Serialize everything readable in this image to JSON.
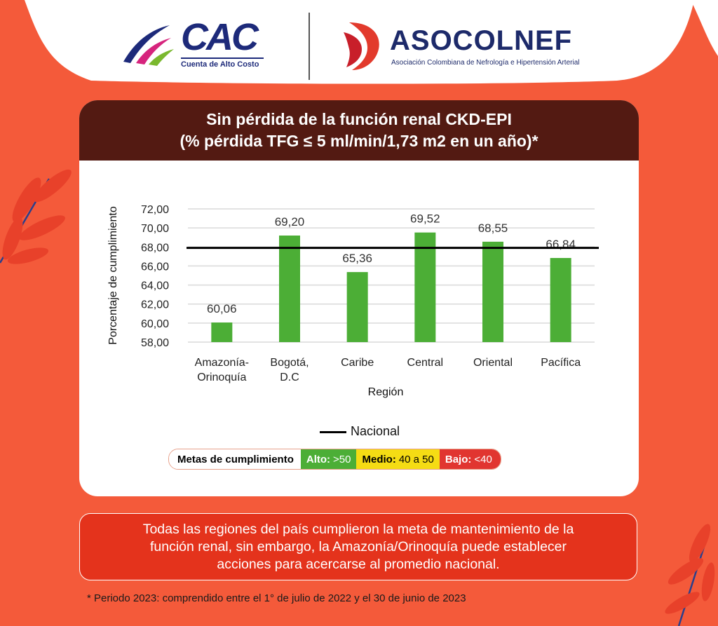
{
  "header": {
    "cac_logo_text": "CAC",
    "cac_logo_subtitle": "Cuenta de Alto Costo",
    "aso_logo_text": "ASOCOLNEF",
    "aso_logo_subtitle": "Asociación Colombiana de Nefrología e Hipertensión Arterial"
  },
  "card": {
    "title_line1": "Sin pérdida de la función renal CKD-EPI",
    "title_line2": "(% pérdida TFG ≤ 5 ml/min/1,73 m2 en un año)*"
  },
  "chart_data": {
    "type": "bar",
    "categories": [
      [
        "Amazonía-",
        "Orinoquía"
      ],
      [
        "Bogotá,",
        "D.C"
      ],
      [
        "Caribe"
      ],
      [
        "Central"
      ],
      [
        "Oriental"
      ],
      [
        "Pacífica"
      ]
    ],
    "values": [
      60.06,
      69.2,
      65.36,
      69.52,
      68.55,
      66.84
    ],
    "value_labels": [
      "60,06",
      "69,20",
      "65,36",
      "69,52",
      "68,55",
      "66,84"
    ],
    "reference_line": {
      "name": "Nacional",
      "value": 67.9
    },
    "ylabel": "Porcentaje de cumplimiento",
    "xlabel": "Región",
    "ylim": [
      58,
      72
    ],
    "yticks": [
      "58,00",
      "60,00",
      "62,00",
      "64,00",
      "66,00",
      "68,00",
      "70,00",
      "72,00"
    ],
    "grid": true,
    "bar_color": "#4cae36",
    "legend_position": "bottom"
  },
  "legend": {
    "nacional_label": "Nacional"
  },
  "goals": {
    "title": "Metas de cumplimiento",
    "alto_label": "Alto:",
    "alto_value": ">50",
    "medio_label": "Medio:",
    "medio_value": "40 a 50",
    "bajo_label": "Bajo:",
    "bajo_value": "<40",
    "colors": {
      "alto": "#4cae36",
      "medio": "#f5dc14",
      "bajo": "#e13530"
    }
  },
  "note": {
    "line1": "Todas las regiones del país cumplieron la meta de mantenimiento de la",
    "line2": "función renal, sin embargo, la Amazonía/Orinoquía puede establecer",
    "line3": "acciones para acercarse al promedio nacional."
  },
  "footnote": "* Periodo 2023: comprendido entre el 1° de julio de 2022 y el 30 de junio de 2023",
  "theme": {
    "background": "#f45a3a",
    "card_header": "#531a12",
    "note_box": "#e4331c"
  }
}
